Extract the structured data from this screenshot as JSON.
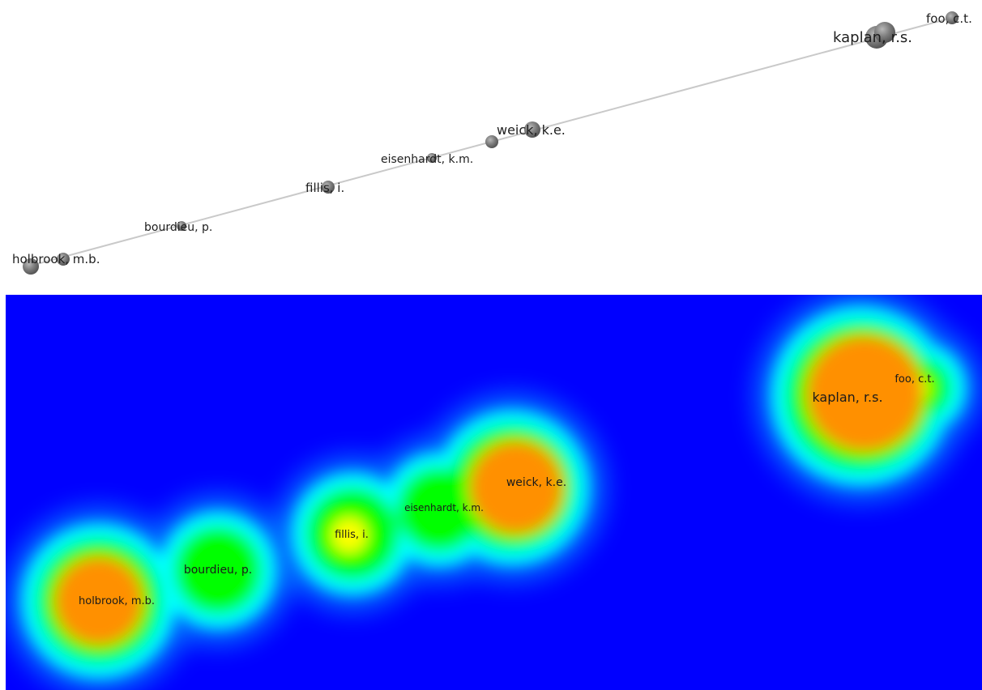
{
  "network": {
    "nodes": [
      {
        "id": "holbrook",
        "label": "holbrook, m.b.",
        "weight": 3
      },
      {
        "id": "holbrook2",
        "label": "",
        "weight": 2
      },
      {
        "id": "bourdieu",
        "label": "bourdieu, p.",
        "weight": 1
      },
      {
        "id": "fillis",
        "label": "fillis, i.",
        "weight": 2
      },
      {
        "id": "eisenhardt",
        "label": "eisenhardt, k.m.",
        "weight": 1
      },
      {
        "id": "eisen2",
        "label": "",
        "weight": 2
      },
      {
        "id": "weick",
        "label": "weick, k.e.",
        "weight": 3
      },
      {
        "id": "kaplan",
        "label": "kaplan, r.s.",
        "weight": 5
      },
      {
        "id": "foo",
        "label": "foo, c.t.",
        "weight": 2
      }
    ]
  },
  "density": {
    "labels": [
      {
        "id": "holbrook",
        "label": "holbrook, m.b."
      },
      {
        "id": "bourdieu",
        "label": "bourdieu, p."
      },
      {
        "id": "fillis",
        "label": "fillis, i."
      },
      {
        "id": "eisenhardt",
        "label": "eisenhardt, k.m."
      },
      {
        "id": "weick",
        "label": "weick, k.e."
      },
      {
        "id": "kaplan",
        "label": "kaplan, r.s."
      },
      {
        "id": "foo",
        "label": "foo, c.t."
      }
    ],
    "colors": {
      "background": "#0000ff",
      "low": "#00ffff",
      "mid": "#00ff00",
      "high": "#ffff00",
      "peak": "#ff0000"
    }
  }
}
